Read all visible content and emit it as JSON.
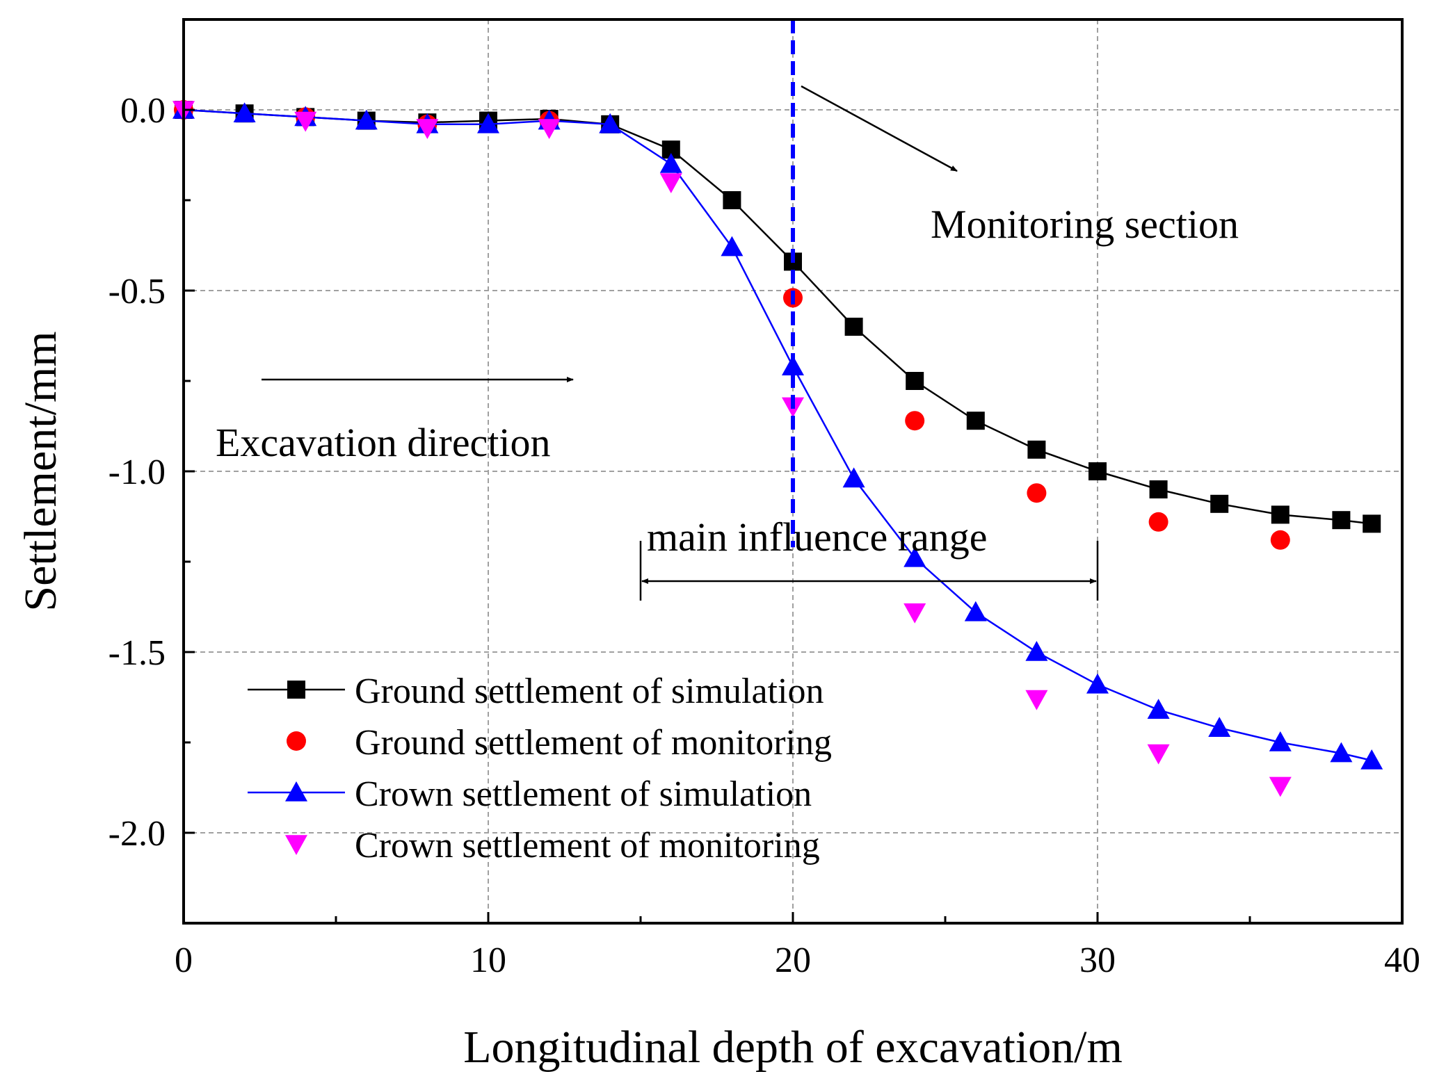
{
  "chart_data": {
    "type": "line",
    "xlabel": "Longitudinal depth of excavation/m",
    "ylabel": "Settlement/mm",
    "xlim": [
      0,
      40
    ],
    "ylim": [
      -2.25,
      0.25
    ],
    "xticks": [
      0,
      10,
      20,
      30,
      40
    ],
    "xtick_labels": [
      "0",
      "10",
      "20",
      "30",
      "40"
    ],
    "yticks": [
      0.0,
      -0.5,
      -1.0,
      -1.5,
      -2.0
    ],
    "ytick_labels": [
      "0.0",
      "-0.5",
      "-1.0",
      "-1.5",
      "-2.0"
    ],
    "grid": true,
    "legend_position": "bottom-left",
    "series": [
      {
        "name": "Ground settlement of simulation",
        "marker": "square",
        "color": "#000000",
        "line": true,
        "x": [
          0,
          2,
          4,
          6,
          8,
          10,
          12,
          14,
          16,
          18,
          20,
          22,
          24,
          26,
          28,
          30,
          32,
          34,
          36,
          38,
          39
        ],
        "y": [
          0.0,
          -0.01,
          -0.02,
          -0.03,
          -0.035,
          -0.03,
          -0.025,
          -0.04,
          -0.11,
          -0.25,
          -0.42,
          -0.6,
          -0.75,
          -0.86,
          -0.94,
          -1.0,
          -1.05,
          -1.09,
          -1.12,
          -1.135,
          -1.145
        ]
      },
      {
        "name": "Ground settlement of monitoring",
        "marker": "circle",
        "color": "#ff0000",
        "line": false,
        "x": [
          0,
          4,
          8,
          12,
          20,
          24,
          28,
          32,
          36
        ],
        "y": [
          0.0,
          -0.02,
          -0.04,
          -0.03,
          -0.52,
          -0.86,
          -1.06,
          -1.14,
          -1.19
        ]
      },
      {
        "name": "Crown settlement  of simulation",
        "marker": "triangle-up",
        "color": "#0000ff",
        "line": true,
        "x": [
          0,
          2,
          4,
          6,
          8,
          10,
          12,
          14,
          16,
          18,
          20,
          22,
          24,
          26,
          28,
          30,
          32,
          34,
          36,
          38,
          39
        ],
        "y": [
          0.0,
          -0.01,
          -0.02,
          -0.03,
          -0.04,
          -0.04,
          -0.03,
          -0.04,
          -0.15,
          -0.38,
          -0.71,
          -1.02,
          -1.24,
          -1.39,
          -1.5,
          -1.59,
          -1.66,
          -1.71,
          -1.75,
          -1.78,
          -1.8
        ]
      },
      {
        "name": "Crown settlement of monitoring",
        "marker": "triangle-down",
        "color": "#ff00ff",
        "line": false,
        "x": [
          0,
          4,
          8,
          12,
          16,
          20,
          24,
          28,
          32,
          36
        ],
        "y": [
          0.0,
          -0.03,
          -0.05,
          -0.05,
          -0.2,
          -0.82,
          -1.39,
          -1.63,
          -1.78,
          -1.87
        ]
      }
    ],
    "annotations": {
      "monitoring_section": {
        "text": "Monitoring section",
        "x": 20
      },
      "excavation_direction": {
        "text": "Excavation direction"
      },
      "influence_range": {
        "text": "main influence range",
        "x_start": 15,
        "x_end": 30
      }
    },
    "colors": {
      "axis": "#000000",
      "grid": "#a0a0a0",
      "section_line": "#0000ff"
    }
  }
}
